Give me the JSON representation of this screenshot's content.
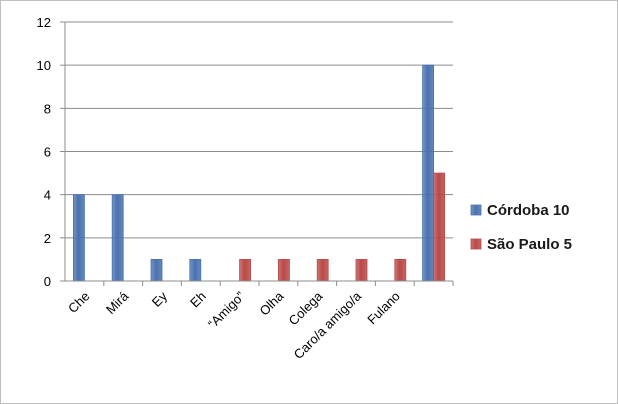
{
  "chart_data": {
    "type": "bar",
    "categories": [
      "Che",
      "Mirá",
      "Ey",
      "Eh",
      "“Amigo”",
      "Olha",
      "Colega",
      "Caro/a amigo/a",
      "Fulano",
      ""
    ],
    "series": [
      {
        "name": "Córdoba 10",
        "color": "#4a72b0",
        "values": [
          4,
          4,
          1,
          1,
          0,
          0,
          0,
          0,
          0,
          10
        ]
      },
      {
        "name": "São Paulo 5",
        "color": "#b94a48",
        "values": [
          0,
          0,
          0,
          0,
          1,
          1,
          1,
          1,
          1,
          5
        ]
      }
    ],
    "ylim": [
      0,
      12
    ],
    "yticks": [
      0,
      2,
      4,
      6,
      8,
      10,
      12
    ],
    "grid": true,
    "legend_position": "right",
    "title": "",
    "xlabel": "",
    "ylabel": ""
  }
}
